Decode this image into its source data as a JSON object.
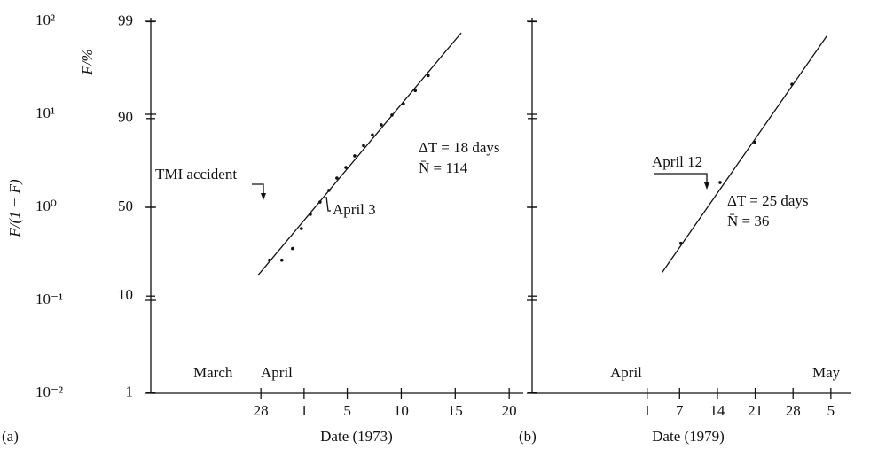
{
  "chart_data": [
    {
      "type": "scatter",
      "panel": "(a)",
      "x_label": "Date (1973)",
      "y_label": "F/(1 − F)",
      "y2_label": "F/%",
      "months": [
        "March",
        "April"
      ],
      "x": [
        -2.2,
        -1.06,
        -0.07,
        0.75,
        1.58,
        2.48,
        3.3,
        4.04,
        4.87,
        5.69,
        6.51,
        7.33,
        8.15,
        9.14,
        10.2,
        11.3,
        12.5
      ],
      "values": [
        0.27,
        0.27,
        0.36,
        0.59,
        0.84,
        1.14,
        1.52,
        2.06,
        2.68,
        3.57,
        4.6,
        6.0,
        7.7,
        9.8,
        13,
        18,
        26
      ],
      "fit_x": [
        -3.28,
        15.56
      ],
      "fit_values": [
        0.185,
        75.2
      ],
      "xlim": [
        -13.2,
        21.3
      ],
      "xticks": [
        {
          "value": -3,
          "label": "28"
        },
        1,
        5,
        10,
        15,
        20
      ],
      "ylim": [
        0.01,
        100
      ],
      "log_y": true,
      "yticks": [
        {
          "value": 100,
          "label": "10²"
        },
        {
          "value": 10,
          "label": "10¹"
        },
        {
          "value": 1,
          "label": "10⁰"
        },
        {
          "value": 0.1,
          "label": "10⁻¹"
        },
        {
          "value": 0.01,
          "label": "10⁻²"
        }
      ],
      "y2lim": [
        0.99,
        99.01
      ],
      "y2_scale": "logit",
      "y2ticks": [
        99,
        90,
        50,
        10,
        1
      ],
      "tick_labels": true,
      "annotations": [
        "TMI accident",
        "April 3",
        "ΔT = 18 days",
        "N̄ = 114"
      ]
    },
    {
      "type": "scatter",
      "panel": "(b)",
      "x_label": "Date (1979)",
      "months": [
        "April",
        "May"
      ],
      "x": [
        7.24,
        14.5,
        20.9,
        27.8
      ],
      "values": [
        0.41,
        1.85,
        5.0,
        21
      ],
      "fit_x": [
        3.79,
        34.3
      ],
      "fit_values": [
        0.2,
        70
      ],
      "xlim": [
        -20.3,
        38.8
      ],
      "xticks": [
        1,
        7,
        14,
        21,
        28,
        {
          "value": 35,
          "label": "5"
        }
      ],
      "ylim": [
        0.01,
        100
      ],
      "log_y": true,
      "yticks": [
        100,
        10,
        1,
        0.1,
        0.01
      ],
      "y2lim": [
        0.99,
        99.01
      ],
      "y2_scale": "logit",
      "y2ticks": [
        99,
        90,
        50,
        10,
        1
      ],
      "tick_labels": false,
      "annotations": [
        "April 12",
        "ΔT = 25 days",
        "N̄ = 36"
      ]
    }
  ]
}
